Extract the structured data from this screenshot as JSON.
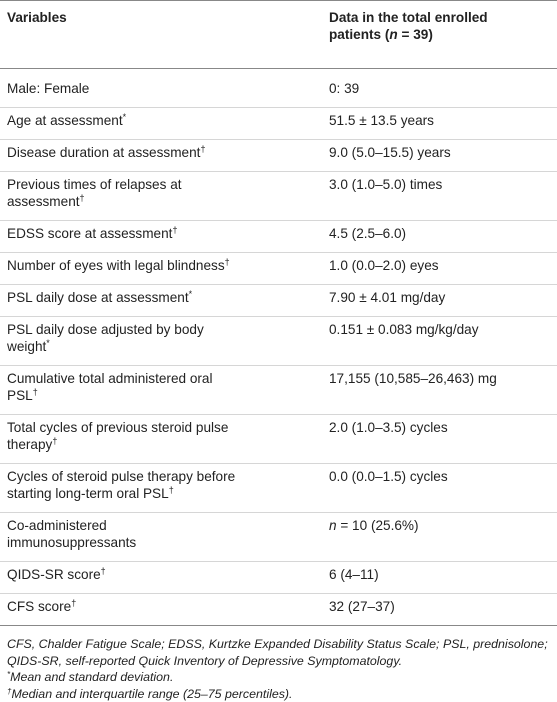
{
  "header": {
    "col1": "Variables",
    "col2_line1": "Data in the total enrolled",
    "col2_line2_prefix": "patients (",
    "col2_n": "n",
    "col2_line2_suffix": " = 39)"
  },
  "rows": [
    {
      "var": "Male: Female",
      "var_sup": "",
      "var2": "",
      "var2_sup": "",
      "val": "0: 39",
      "val_italic_prefix": ""
    },
    {
      "var": "Age at assessment",
      "var_sup": "*",
      "var2": "",
      "var2_sup": "",
      "val": "51.5 ± 13.5 years",
      "val_italic_prefix": ""
    },
    {
      "var": "Disease duration at assessment",
      "var_sup": "†",
      "var2": "",
      "var2_sup": "",
      "val": "9.0 (5.0–15.5) years",
      "val_italic_prefix": ""
    },
    {
      "var": "Previous times of relapses at",
      "var_sup": "",
      "var2": "assessment",
      "var2_sup": "†",
      "val": "3.0 (1.0–5.0) times",
      "val_italic_prefix": ""
    },
    {
      "var": "EDSS score at assessment",
      "var_sup": "†",
      "var2": "",
      "var2_sup": "",
      "val": "4.5 (2.5–6.0)",
      "val_italic_prefix": ""
    },
    {
      "var": "Number of eyes with legal blindness",
      "var_sup": "†",
      "var2": "",
      "var2_sup": "",
      "val": "1.0 (0.0–2.0) eyes",
      "val_italic_prefix": ""
    },
    {
      "var": "PSL daily dose at assessment",
      "var_sup": "*",
      "var2": "",
      "var2_sup": "",
      "val": "7.90 ± 4.01 mg/day",
      "val_italic_prefix": ""
    },
    {
      "var": "PSL daily dose adjusted by body",
      "var_sup": "",
      "var2": "weight",
      "var2_sup": "*",
      "val": "0.151 ± 0.083 mg/kg/day",
      "val_italic_prefix": ""
    },
    {
      "var": "Cumulative total administered oral",
      "var_sup": "",
      "var2": "PSL",
      "var2_sup": "†",
      "val": "17,155 (10,585–26,463) mg",
      "val_italic_prefix": ""
    },
    {
      "var": "Total cycles of previous steroid pulse",
      "var_sup": "",
      "var2": "therapy",
      "var2_sup": "†",
      "val": "2.0 (1.0–3.5) cycles",
      "val_italic_prefix": ""
    },
    {
      "var": "Cycles of steroid pulse therapy before",
      "var_sup": "",
      "var2": "starting long-term oral PSL",
      "var2_sup": "†",
      "val": "0.0 (0.0–1.5) cycles",
      "val_italic_prefix": ""
    },
    {
      "var": "Co-administered",
      "var_sup": "",
      "var2": "immunosuppressants",
      "var2_sup": "",
      "val": " = 10 (25.6%)",
      "val_italic_prefix": "n"
    },
    {
      "var": "QIDS-SR score",
      "var_sup": "†",
      "var2": "",
      "var2_sup": "",
      "val": "6 (4–11)",
      "val_italic_prefix": ""
    },
    {
      "var": "CFS score",
      "var_sup": "†",
      "var2": "",
      "var2_sup": "",
      "val": "32 (27–37)",
      "val_italic_prefix": ""
    }
  ],
  "footnotes": {
    "abbrev": "CFS, Chalder Fatigue Scale; EDSS, Kurtzke Expanded Disability Status Scale; PSL, prednisolone; QIDS-SR, self-reported Quick Inventory of Depressive Symptomatology.",
    "star_mark": "*",
    "star_text": "Mean and standard deviation.",
    "dagger_mark": "†",
    "dagger_text": "Median and interquartile range (25–75 percentiles)."
  }
}
